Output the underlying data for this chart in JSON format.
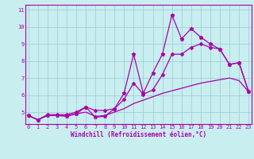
{
  "xlabel": "Windchill (Refroidissement éolien,°C)",
  "bg_color": "#c8eef0",
  "line_color": "#aa00aa",
  "grid_color": "#a0d0d8",
  "x_values": [
    0,
    1,
    2,
    3,
    4,
    5,
    6,
    7,
    8,
    9,
    10,
    11,
    12,
    13,
    14,
    15,
    16,
    17,
    18,
    19,
    20,
    21,
    22,
    23
  ],
  "line1": [
    4.8,
    4.55,
    4.8,
    4.8,
    4.75,
    4.9,
    5.3,
    4.7,
    4.75,
    5.2,
    6.1,
    8.4,
    6.1,
    7.3,
    8.4,
    10.7,
    9.3,
    9.9,
    9.4,
    9.0,
    8.7,
    7.8,
    7.9,
    6.2
  ],
  "line2": [
    4.8,
    4.55,
    4.85,
    4.85,
    4.85,
    5.0,
    5.3,
    5.1,
    5.1,
    5.2,
    5.75,
    6.7,
    6.05,
    6.3,
    7.2,
    8.4,
    8.4,
    8.8,
    9.0,
    8.8,
    8.7,
    7.8,
    7.9,
    6.2
  ],
  "line3": [
    4.8,
    4.55,
    4.8,
    4.8,
    4.8,
    4.9,
    5.0,
    4.75,
    4.8,
    5.0,
    5.2,
    5.5,
    5.7,
    5.9,
    6.1,
    6.25,
    6.4,
    6.55,
    6.7,
    6.8,
    6.9,
    7.0,
    6.85,
    6.2
  ],
  "ylim": [
    4.3,
    11.3
  ],
  "yticks": [
    5,
    6,
    7,
    8,
    9,
    10,
    11
  ],
  "xticks": [
    0,
    1,
    2,
    3,
    4,
    5,
    6,
    7,
    8,
    9,
    10,
    11,
    12,
    13,
    14,
    15,
    16,
    17,
    18,
    19,
    20,
    21,
    22,
    23
  ]
}
